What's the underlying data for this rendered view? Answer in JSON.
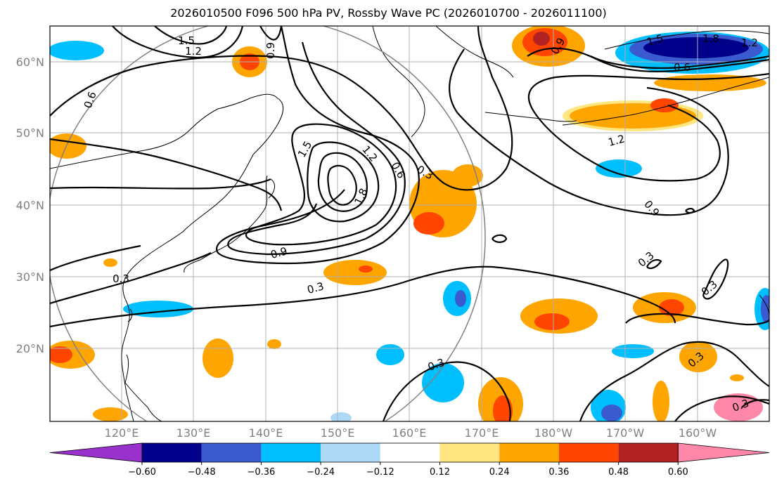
{
  "title": "2026010500 F096 500 hPa PV, Rossby Wave PC (2026010700 - 2026011100)",
  "map": {
    "lon_labels": [
      "120°E",
      "130°E",
      "140°E",
      "150°E",
      "160°E",
      "170°E",
      "180°W",
      "170°W",
      "160°W"
    ],
    "lat_labels": [
      "60°N",
      "50°N",
      "40°N",
      "30°N",
      "20°N"
    ],
    "contour_labels": [
      "1.5",
      "1.2",
      "0.9",
      "0.6",
      "1.8",
      "1.5",
      "0.6",
      "1.2",
      "1.5",
      "1.2",
      "1.8",
      "0.6",
      "0.3",
      "0.9",
      "0.3",
      "1.2",
      "0.9",
      "0.3",
      "0.3",
      "0.3",
      "0.3",
      "0.3",
      "0.3",
      "0.6",
      "0.3"
    ],
    "grid": true
  },
  "colorbar": {
    "labels": [
      "−0.60",
      "−0.48",
      "−0.36",
      "−0.24",
      "−0.12",
      "0.12",
      "0.24",
      "0.36",
      "0.48",
      "0.60"
    ],
    "colors": [
      "#9932cc",
      "#00008b",
      "#3a5bd0",
      "#00bfff",
      "#add8f6",
      "#ffffff",
      "#ffe680",
      "#ffa500",
      "#ff4500",
      "#b22222",
      "#ff88aa"
    ]
  }
}
